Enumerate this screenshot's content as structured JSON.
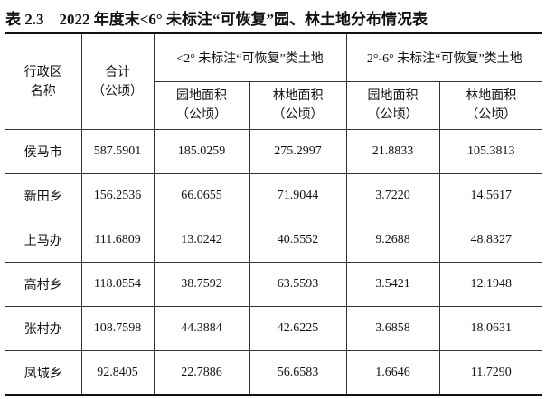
{
  "title": "表 2.3　2022 年度末<6° 未标注“可恢复”园、林土地分布情况表",
  "header": {
    "name": [
      "行政区",
      "名称"
    ],
    "total": [
      "合计",
      "（公顷）"
    ],
    "groups": [
      "<2° 未标注“可恢复”类土地",
      "2°-6° 未标注“可恢复”类土地"
    ],
    "sub": [
      [
        "园地面积",
        "（公顷）"
      ],
      [
        "林地面积",
        "（公顷）"
      ],
      [
        "园地面积",
        "（公顷）"
      ],
      [
        "林地面积",
        "（公顷）"
      ]
    ]
  },
  "rows": [
    [
      "侯马市",
      "587.5901",
      "185.0259",
      "275.2997",
      "21.8833",
      "105.3813"
    ],
    [
      "新田乡",
      "156.2536",
      "66.0655",
      "71.9044",
      "3.7220",
      "14.5617"
    ],
    [
      "上马办",
      "111.6809",
      "13.0242",
      "40.5552",
      "9.2688",
      "48.8327"
    ],
    [
      "高村乡",
      "118.0554",
      "38.7592",
      "63.5593",
      "3.5421",
      "12.1948"
    ],
    [
      "张村办",
      "108.7598",
      "44.3884",
      "42.6225",
      "3.6858",
      "18.0631"
    ],
    [
      "凤城乡",
      "92.8405",
      "22.7886",
      "56.6583",
      "1.6646",
      "11.7290"
    ]
  ]
}
